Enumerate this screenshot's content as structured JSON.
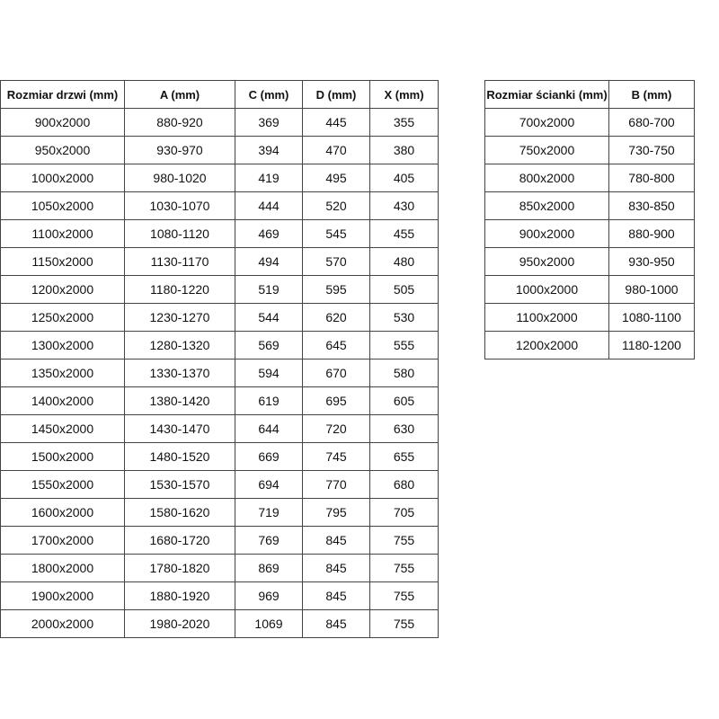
{
  "doors_table": {
    "headers": [
      "Rozmiar drzwi (mm)",
      "A (mm)",
      "C (mm)",
      "D (mm)",
      "X (mm)"
    ],
    "rows": [
      [
        "900x2000",
        "880-920",
        "369",
        "445",
        "355"
      ],
      [
        "950x2000",
        "930-970",
        "394",
        "470",
        "380"
      ],
      [
        "1000x2000",
        "980-1020",
        "419",
        "495",
        "405"
      ],
      [
        "1050x2000",
        "1030-1070",
        "444",
        "520",
        "430"
      ],
      [
        "1100x2000",
        "1080-1120",
        "469",
        "545",
        "455"
      ],
      [
        "1150x2000",
        "1130-1170",
        "494",
        "570",
        "480"
      ],
      [
        "1200x2000",
        "1180-1220",
        "519",
        "595",
        "505"
      ],
      [
        "1250x2000",
        "1230-1270",
        "544",
        "620",
        "530"
      ],
      [
        "1300x2000",
        "1280-1320",
        "569",
        "645",
        "555"
      ],
      [
        "1350x2000",
        "1330-1370",
        "594",
        "670",
        "580"
      ],
      [
        "1400x2000",
        "1380-1420",
        "619",
        "695",
        "605"
      ],
      [
        "1450x2000",
        "1430-1470",
        "644",
        "720",
        "630"
      ],
      [
        "1500x2000",
        "1480-1520",
        "669",
        "745",
        "655"
      ],
      [
        "1550x2000",
        "1530-1570",
        "694",
        "770",
        "680"
      ],
      [
        "1600x2000",
        "1580-1620",
        "719",
        "795",
        "705"
      ],
      [
        "1700x2000",
        "1680-1720",
        "769",
        "845",
        "755"
      ],
      [
        "1800x2000",
        "1780-1820",
        "869",
        "845",
        "755"
      ],
      [
        "1900x2000",
        "1880-1920",
        "969",
        "845",
        "755"
      ],
      [
        "2000x2000",
        "1980-2020",
        "1069",
        "845",
        "755"
      ]
    ]
  },
  "wall_table": {
    "headers": [
      "Rozmiar ścianki (mm)",
      "B (mm)"
    ],
    "rows": [
      [
        "700x2000",
        "680-700"
      ],
      [
        "750x2000",
        "730-750"
      ],
      [
        "800x2000",
        "780-800"
      ],
      [
        "850x2000",
        "830-850"
      ],
      [
        "900x2000",
        "880-900"
      ],
      [
        "950x2000",
        "930-950"
      ],
      [
        "1000x2000",
        "980-1000"
      ],
      [
        "1100x2000",
        "1080-1100"
      ],
      [
        "1200x2000",
        "1180-1200"
      ]
    ]
  }
}
